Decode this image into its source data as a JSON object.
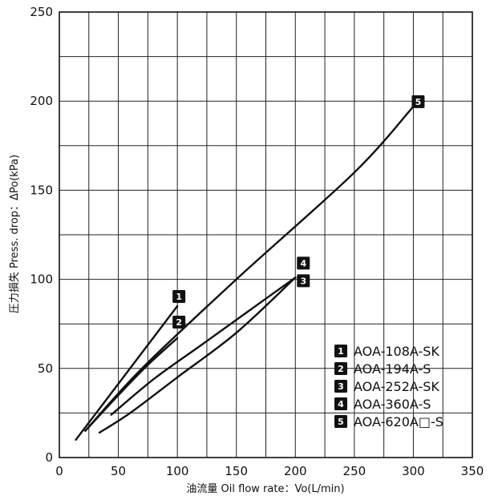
{
  "chart_data": {
    "type": "line",
    "xlabel": "油流量 Oil flow rate：Vo(L/min)",
    "ylabel": "圧力損失 Press. drop：ΔPo(kPa)",
    "xlim": [
      0,
      350
    ],
    "ylim": [
      0,
      250
    ],
    "xticks": [
      "0",
      "50",
      "100",
      "150",
      "200",
      "250",
      "300",
      "350"
    ],
    "yticks": [
      "0",
      "50",
      "100",
      "150",
      "200",
      "250"
    ],
    "grid": "on",
    "legend_position": "bottom-right",
    "series": [
      {
        "id": "1",
        "name": "AOA-108A-SK",
        "x": [
          14,
          100
        ],
        "y": [
          10,
          85
        ]
      },
      {
        "id": "2",
        "name": "AOA-194A-S",
        "x": [
          22,
          50,
          75,
          100
        ],
        "y": [
          15,
          35,
          52,
          67
        ]
      },
      {
        "id": "3",
        "name": "AOA-252A-SK",
        "x": [
          34,
          60,
          100,
          150,
          200
        ],
        "y": [
          14,
          25,
          45,
          70,
          101
        ]
      },
      {
        "id": "4",
        "name": "AOA-360A-S",
        "x": [
          44,
          80,
          120,
          160,
          200
        ],
        "y": [
          24,
          44,
          63,
          82,
          101
        ]
      },
      {
        "id": "5",
        "name": "AOA-620A□-S",
        "x": [
          22,
          70,
          150,
          250,
          300
        ],
        "y": [
          15,
          50,
          100,
          160,
          197
        ]
      }
    ]
  }
}
